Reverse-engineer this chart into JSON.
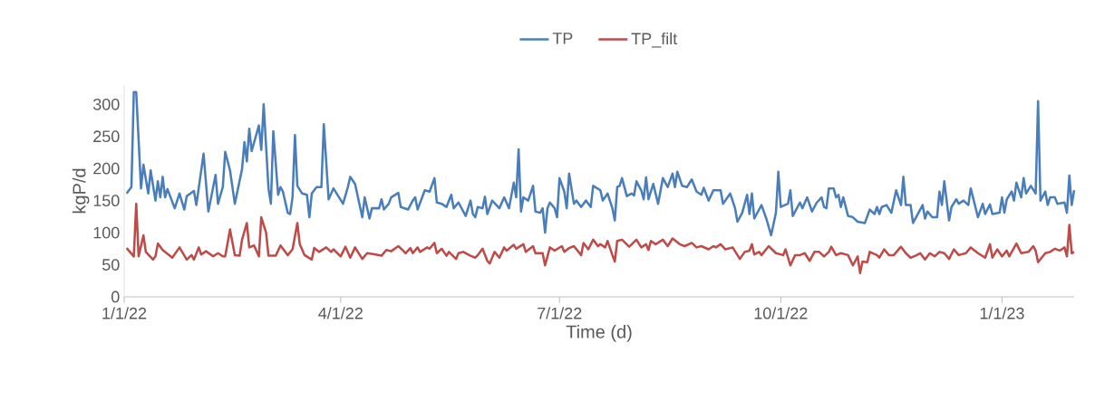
{
  "chart_data": {
    "type": "line",
    "xlabel": "Time (d)",
    "ylabel": "kgP/d",
    "xlim": [
      "2022-01-01",
      "2023-01-31"
    ],
    "ylim": [
      0,
      330
    ],
    "xticks": [
      {
        "value": "2022-01-01",
        "label": "1/1/22"
      },
      {
        "value": "2022-04-01",
        "label": "4/1/22"
      },
      {
        "value": "2022-07-01",
        "label": "7/1/22"
      },
      {
        "value": "2022-10-01",
        "label": "10/1/22"
      },
      {
        "value": "2023-01-01",
        "label": "1/1/23"
      }
    ],
    "yticks": [
      0,
      50,
      100,
      150,
      200,
      250,
      300
    ],
    "grid": false,
    "legend": "top",
    "marker": "none",
    "line_style": "solid",
    "series": [
      {
        "name": "TP",
        "color": "#4a7ebb",
        "x": [
          "2022-01-02",
          "2022-01-04",
          "2022-01-05",
          "2022-01-06",
          "2022-01-08",
          "2022-01-09",
          "2022-01-11",
          "2022-01-12",
          "2022-01-14",
          "2022-01-15",
          "2022-01-16",
          "2022-01-17",
          "2022-01-18",
          "2022-01-19",
          "2022-01-22",
          "2022-01-24",
          "2022-01-26",
          "2022-01-27",
          "2022-01-30",
          "2022-01-31",
          "2022-02-03",
          "2022-02-05",
          "2022-02-08",
          "2022-02-09",
          "2022-02-11",
          "2022-02-12",
          "2022-02-14",
          "2022-02-16",
          "2022-02-19",
          "2022-02-20",
          "2022-02-21",
          "2022-02-22",
          "2022-02-23",
          "2022-02-26",
          "2022-02-27",
          "2022-02-28",
          "2022-03-02",
          "2022-03-03",
          "2022-03-04",
          "2022-03-06",
          "2022-03-07",
          "2022-03-08",
          "2022-03-10",
          "2022-03-11",
          "2022-03-12",
          "2022-03-13",
          "2022-03-14",
          "2022-03-16",
          "2022-03-18",
          "2022-03-19",
          "2022-03-20",
          "2022-03-22",
          "2022-03-24",
          "2022-03-25",
          "2022-03-27",
          "2022-03-29",
          "2022-03-31",
          "2022-04-02",
          "2022-04-04",
          "2022-04-05",
          "2022-04-07",
          "2022-04-10",
          "2022-04-11",
          "2022-04-13",
          "2022-04-14",
          "2022-04-17",
          "2022-04-18",
          "2022-04-19",
          "2022-04-21",
          "2022-04-22",
          "2022-04-25",
          "2022-04-26",
          "2022-04-29",
          "2022-05-01",
          "2022-05-02",
          "2022-05-03",
          "2022-05-06",
          "2022-05-08",
          "2022-05-10",
          "2022-05-11",
          "2022-05-13",
          "2022-05-15",
          "2022-05-17",
          "2022-05-18",
          "2022-05-20",
          "2022-05-23",
          "2022-05-25",
          "2022-05-26",
          "2022-05-27",
          "2022-05-28",
          "2022-05-30",
          "2022-05-31",
          "2022-06-01",
          "2022-06-03",
          "2022-06-06",
          "2022-06-08",
          "2022-06-10",
          "2022-06-12",
          "2022-06-13",
          "2022-06-14",
          "2022-06-15",
          "2022-06-16",
          "2022-06-18",
          "2022-06-20",
          "2022-06-21",
          "2022-06-23",
          "2022-06-24",
          "2022-06-25",
          "2022-06-26",
          "2022-06-27",
          "2022-06-29",
          "2022-06-30",
          "2022-07-01",
          "2022-07-03",
          "2022-07-04",
          "2022-07-05",
          "2022-07-07",
          "2022-07-08",
          "2022-07-10",
          "2022-07-12",
          "2022-07-14",
          "2022-07-15",
          "2022-07-18",
          "2022-07-19",
          "2022-07-21",
          "2022-07-23",
          "2022-07-24",
          "2022-07-25",
          "2022-07-26",
          "2022-07-27",
          "2022-07-29",
          "2022-07-31",
          "2022-08-01",
          "2022-08-02",
          "2022-08-04",
          "2022-08-05",
          "2022-08-06",
          "2022-08-07",
          "2022-08-09",
          "2022-08-11",
          "2022-08-13",
          "2022-08-15",
          "2022-08-17",
          "2022-08-18",
          "2022-08-19",
          "2022-08-21",
          "2022-08-23",
          "2022-08-25",
          "2022-08-27",
          "2022-08-29",
          "2022-08-30",
          "2022-09-01",
          "2022-09-03",
          "2022-09-06",
          "2022-09-07",
          "2022-09-10",
          "2022-09-12",
          "2022-09-13",
          "2022-09-15",
          "2022-09-17",
          "2022-09-18",
          "2022-09-19",
          "2022-09-20",
          "2022-09-23",
          "2022-09-25",
          "2022-09-27",
          "2022-09-29",
          "2022-09-30",
          "2022-10-01",
          "2022-10-04",
          "2022-10-05",
          "2022-10-06",
          "2022-10-09",
          "2022-10-10",
          "2022-10-12",
          "2022-10-14",
          "2022-10-16",
          "2022-10-18",
          "2022-10-19",
          "2022-10-20",
          "2022-10-21",
          "2022-10-23",
          "2022-10-24",
          "2022-10-25",
          "2022-10-26",
          "2022-10-27",
          "2022-10-29",
          "2022-10-31",
          "2022-11-02",
          "2022-11-05",
          "2022-11-07",
          "2022-11-09",
          "2022-11-10",
          "2022-11-11",
          "2022-11-12",
          "2022-11-14",
          "2022-11-16",
          "2022-11-18",
          "2022-11-20",
          "2022-11-21",
          "2022-11-22",
          "2022-11-24",
          "2022-11-25",
          "2022-11-27",
          "2022-11-29",
          "2022-11-30",
          "2022-12-01",
          "2022-12-03",
          "2022-12-05",
          "2022-12-06",
          "2022-12-07",
          "2022-12-08",
          "2022-12-10",
          "2022-12-11",
          "2022-12-13",
          "2022-12-14",
          "2022-12-16",
          "2022-12-18",
          "2022-12-19",
          "2022-12-22",
          "2022-12-24",
          "2022-12-25",
          "2022-12-27",
          "2022-12-28",
          "2022-12-31",
          "2023-01-01",
          "2023-01-02",
          "2023-01-03",
          "2023-01-05",
          "2023-01-06",
          "2023-01-07",
          "2023-01-09",
          "2023-01-10",
          "2023-01-11",
          "2023-01-13",
          "2023-01-15",
          "2023-01-16",
          "2023-01-17",
          "2023-01-19",
          "2023-01-20",
          "2023-01-21",
          "2023-01-23",
          "2023-01-24",
          "2023-01-27",
          "2023-01-28",
          "2023-01-29",
          "2023-01-30",
          "2023-01-31"
        ],
        "values": [
          161,
          171,
          319,
          319,
          169,
          206,
          161,
          197,
          150,
          180,
          155,
          187,
          155,
          168,
          138,
          161,
          136,
          157,
          165,
          143,
          223,
          133,
          190,
          145,
          171,
          226,
          197,
          145,
          199,
          241,
          211,
          262,
          227,
          267,
          229,
          300,
          169,
          145,
          258,
          159,
          171,
          164,
          131,
          129,
          155,
          252,
          173,
          161,
          159,
          124,
          161,
          171,
          171,
          269,
          152,
          169,
          157,
          145,
          171,
          187,
          176,
          124,
          155,
          122,
          138,
          138,
          152,
          136,
          145,
          155,
          162,
          140,
          136,
          150,
          155,
          136,
          166,
          164,
          185,
          147,
          145,
          140,
          159,
          138,
          147,
          126,
          150,
          129,
          124,
          140,
          138,
          156,
          129,
          150,
          138,
          155,
          138,
          178,
          155,
          230,
          133,
          155,
          150,
          173,
          133,
          131,
          138,
          100,
          138,
          147,
          138,
          124,
          185,
          164,
          138,
          192,
          145,
          150,
          140,
          150,
          140,
          173,
          166,
          150,
          161,
          138,
          119,
          171,
          173,
          185,
          157,
          161,
          158,
          180,
          166,
          152,
          186,
          152,
          176,
          145,
          185,
          171,
          192,
          171,
          195,
          173,
          171,
          183,
          164,
          159,
          170,
          150,
          166,
          166,
          145,
          161,
          138,
          117,
          131,
          159,
          129,
          161,
          122,
          143,
          122,
          96,
          131,
          195,
          140,
          145,
          166,
          126,
          147,
          138,
          155,
          133,
          147,
          155,
          140,
          138,
          169,
          169,
          155,
          159,
          140,
          155,
          126,
          124,
          117,
          115,
          136,
          129,
          140,
          129,
          140,
          143,
          131,
          166,
          143,
          187,
          143,
          143,
          115,
          129,
          143,
          122,
          133,
          124,
          124,
          164,
          143,
          180,
          119,
          140,
          152,
          145,
          150,
          143,
          169,
          124,
          145,
          129,
          144,
          129,
          131,
          155,
          131,
          152,
          164,
          150,
          178,
          155,
          185,
          161,
          173,
          161,
          305,
          150,
          164,
          143,
          155,
          155,
          145,
          147,
          131,
          189,
          143,
          166
        ]
      },
      {
        "name": "TP_filt",
        "color": "#be4b48",
        "x": [
          "2022-01-02",
          "2022-01-05",
          "2022-01-06",
          "2022-01-07",
          "2022-01-09",
          "2022-01-10",
          "2022-01-13",
          "2022-01-14",
          "2022-01-15",
          "2022-01-17",
          "2022-01-21",
          "2022-01-24",
          "2022-01-27",
          "2022-01-29",
          "2022-01-30",
          "2022-02-01",
          "2022-02-02",
          "2022-02-04",
          "2022-02-07",
          "2022-02-09",
          "2022-02-11",
          "2022-02-12",
          "2022-02-14",
          "2022-02-16",
          "2022-02-18",
          "2022-02-19",
          "2022-02-21",
          "2022-02-22",
          "2022-02-24",
          "2022-02-26",
          "2022-02-27",
          "2022-03-01",
          "2022-03-02",
          "2022-03-05",
          "2022-03-07",
          "2022-03-10",
          "2022-03-12",
          "2022-03-14",
          "2022-03-15",
          "2022-03-17",
          "2022-03-20",
          "2022-03-21",
          "2022-03-23",
          "2022-03-26",
          "2022-03-28",
          "2022-03-29",
          "2022-04-01",
          "2022-04-03",
          "2022-04-05",
          "2022-04-07",
          "2022-04-10",
          "2022-04-12",
          "2022-04-14",
          "2022-04-18",
          "2022-04-20",
          "2022-04-22",
          "2022-04-25",
          "2022-04-27",
          "2022-04-28",
          "2022-04-30",
          "2022-05-01",
          "2022-05-03",
          "2022-05-04",
          "2022-05-07",
          "2022-05-08",
          "2022-05-10",
          "2022-05-11",
          "2022-05-13",
          "2022-05-15",
          "2022-05-16",
          "2022-05-19",
          "2022-05-20",
          "2022-05-22",
          "2022-05-25",
          "2022-05-27",
          "2022-05-28",
          "2022-05-30",
          "2022-06-01",
          "2022-06-02",
          "2022-06-04",
          "2022-06-06",
          "2022-06-08",
          "2022-06-09",
          "2022-06-12",
          "2022-06-13",
          "2022-06-16",
          "2022-06-17",
          "2022-06-20",
          "2022-06-21",
          "2022-06-24",
          "2022-06-25",
          "2022-06-27",
          "2022-06-29",
          "2022-07-02",
          "2022-07-03",
          "2022-07-05",
          "2022-07-07",
          "2022-07-10",
          "2022-07-11",
          "2022-07-13",
          "2022-07-15",
          "2022-07-17",
          "2022-07-18",
          "2022-07-20",
          "2022-07-21",
          "2022-07-23",
          "2022-07-24",
          "2022-07-25",
          "2022-07-27",
          "2022-07-30",
          "2022-08-02",
          "2022-08-04",
          "2022-08-06",
          "2022-08-07",
          "2022-08-08",
          "2022-08-10",
          "2022-08-13",
          "2022-08-15",
          "2022-08-17",
          "2022-08-20",
          "2022-08-22",
          "2022-08-25",
          "2022-08-27",
          "2022-08-29",
          "2022-09-01",
          "2022-09-03",
          "2022-09-04",
          "2022-09-06",
          "2022-09-08",
          "2022-09-11",
          "2022-09-14",
          "2022-09-16",
          "2022-09-18",
          "2022-09-19",
          "2022-09-20",
          "2022-09-22",
          "2022-09-23",
          "2022-09-26",
          "2022-09-29",
          "2022-10-02",
          "2022-10-03",
          "2022-10-05",
          "2022-10-07",
          "2022-10-09",
          "2022-10-11",
          "2022-10-13",
          "2022-10-15",
          "2022-10-17",
          "2022-10-19",
          "2022-10-21",
          "2022-10-22",
          "2022-10-24",
          "2022-10-26",
          "2022-10-29",
          "2022-10-31",
          "2022-11-02",
          "2022-11-03",
          "2022-11-04",
          "2022-11-06",
          "2022-11-07",
          "2022-11-10",
          "2022-11-11",
          "2022-11-13",
          "2022-11-15",
          "2022-11-17",
          "2022-11-20",
          "2022-11-22",
          "2022-11-24",
          "2022-11-26",
          "2022-11-28",
          "2022-11-30",
          "2022-12-02",
          "2022-12-04",
          "2022-12-06",
          "2022-12-08",
          "2022-12-10",
          "2022-12-12",
          "2022-12-14",
          "2022-12-17",
          "2022-12-19",
          "2022-12-22",
          "2022-12-25",
          "2022-12-27",
          "2022-12-28",
          "2022-12-30",
          "2023-01-01",
          "2023-01-03",
          "2023-01-04",
          "2023-01-07",
          "2023-01-09",
          "2023-01-12",
          "2023-01-14",
          "2023-01-15",
          "2023-01-16",
          "2023-01-19",
          "2023-01-21",
          "2023-01-23",
          "2023-01-25",
          "2023-01-27",
          "2023-01-28",
          "2023-01-29",
          "2023-01-30",
          "2023-01-31"
        ],
        "values": [
          76,
          63,
          145,
          63,
          96,
          70,
          58,
          63,
          83,
          73,
          61,
          77,
          58,
          65,
          58,
          77,
          66,
          71,
          63,
          68,
          63,
          63,
          105,
          65,
          64,
          89,
          115,
          77,
          80,
          63,
          124,
          100,
          64,
          64,
          80,
          65,
          74,
          115,
          82,
          65,
          58,
          76,
          70,
          77,
          70,
          74,
          63,
          78,
          61,
          77,
          59,
          68,
          67,
          64,
          73,
          71,
          79,
          72,
          68,
          76,
          68,
          77,
          70,
          77,
          75,
          84,
          68,
          75,
          64,
          70,
          59,
          68,
          70,
          64,
          61,
          65,
          75,
          56,
          52,
          70,
          61,
          77,
          72,
          81,
          75,
          82,
          70,
          79,
          68,
          68,
          49,
          77,
          72,
          79,
          70,
          76,
          79,
          65,
          84,
          74,
          89,
          79,
          82,
          77,
          87,
          65,
          55,
          87,
          89,
          78,
          89,
          77,
          82,
          73,
          87,
          82,
          89,
          79,
          91,
          82,
          79,
          84,
          77,
          79,
          74,
          79,
          77,
          82,
          74,
          77,
          59,
          70,
          72,
          82,
          66,
          70,
          65,
          79,
          68,
          65,
          74,
          49,
          65,
          65,
          68,
          56,
          70,
          70,
          63,
          70,
          78,
          65,
          68,
          65,
          49,
          63,
          37,
          55,
          54,
          70,
          65,
          61,
          74,
          65,
          65,
          78,
          68,
          61,
          64,
          68,
          58,
          68,
          63,
          70,
          68,
          59,
          74,
          65,
          68,
          77,
          68,
          61,
          82,
          61,
          74,
          63,
          72,
          63,
          83,
          68,
          70,
          79,
          72,
          54,
          68,
          70,
          75,
          72,
          77,
          63,
          112,
          68,
          70
        ]
      }
    ]
  }
}
